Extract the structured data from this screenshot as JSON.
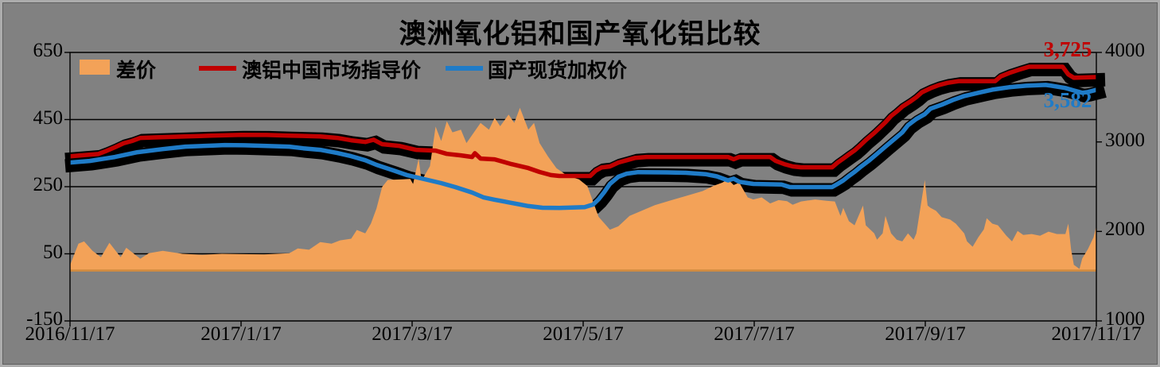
{
  "title": "澳洲氧化铝和国产氧化铝比较",
  "legend": [
    {
      "label": "差价",
      "type": "area",
      "color": "#F3A258"
    },
    {
      "label": "澳铝中国市场指导价",
      "type": "line",
      "color": "#C00000"
    },
    {
      "label": "国产现货加权价",
      "type": "line",
      "color": "#1F7BC7"
    }
  ],
  "colors": {
    "background": "#818181",
    "grid": "#000000",
    "shadow": "#000000",
    "area": "#F3A258",
    "area_baseline": "#D28B3F",
    "red_line": "#C00000",
    "blue_line": "#1F7BC7"
  },
  "chart_data": {
    "type": "combo",
    "x_axis": {
      "start": "2016/11/17",
      "end": "2017/11/17",
      "tick_labels": [
        "2016/11/17",
        "2017/1/17",
        "2017/3/17",
        "2017/5/17",
        "2017/7/17",
        "2017/9/17",
        "2017/11/17"
      ],
      "span_days": 365
    },
    "y_left": {
      "min": -150,
      "max": 650,
      "ticks": [
        650,
        450,
        250,
        50,
        -150
      ]
    },
    "y_right": {
      "min": 1000,
      "max": 4000,
      "ticks": [
        4000,
        3000,
        2000,
        1000
      ]
    },
    "grid": "horizontal-left-ticks",
    "legend_position": "top-left-inside",
    "end_labels": [
      {
        "text": "3,725",
        "value": 3725,
        "color": "#C00000"
      },
      {
        "text": "3,582",
        "value": 3582,
        "color": "#1F7BC7"
      }
    ],
    "series": [
      {
        "name": "差价",
        "type": "area",
        "axis": "left",
        "color": "#F3A258",
        "baseline": 0,
        "points": [
          [
            0,
            16
          ],
          [
            3,
            80
          ],
          [
            5,
            87
          ],
          [
            8,
            59
          ],
          [
            11,
            40
          ],
          [
            14,
            83
          ],
          [
            18,
            40
          ],
          [
            20,
            68
          ],
          [
            25,
            35
          ],
          [
            28,
            52
          ],
          [
            33,
            59
          ],
          [
            40,
            50
          ],
          [
            47,
            47
          ],
          [
            54,
            50
          ],
          [
            61,
            49
          ],
          [
            69,
            48
          ],
          [
            78,
            52
          ],
          [
            81,
            66
          ],
          [
            85,
            62
          ],
          [
            89,
            85
          ],
          [
            93,
            80
          ],
          [
            96,
            90
          ],
          [
            100,
            95
          ],
          [
            102,
            121
          ],
          [
            105,
            111
          ],
          [
            107,
            140
          ],
          [
            109,
            185
          ],
          [
            111,
            249
          ],
          [
            113,
            270
          ],
          [
            121,
            273
          ],
          [
            122,
            258
          ],
          [
            124,
            334
          ],
          [
            125,
            268
          ],
          [
            128,
            311
          ],
          [
            130,
            429
          ],
          [
            132,
            386
          ],
          [
            134,
            445
          ],
          [
            136,
            412
          ],
          [
            139,
            420
          ],
          [
            141,
            380
          ],
          [
            146,
            440
          ],
          [
            149,
            420
          ],
          [
            151,
            455
          ],
          [
            153,
            430
          ],
          [
            156,
            465
          ],
          [
            158,
            440
          ],
          [
            160,
            485
          ],
          [
            163,
            420
          ],
          [
            165,
            440
          ],
          [
            167,
            380
          ],
          [
            170,
            340
          ],
          [
            173,
            305
          ],
          [
            177,
            282
          ],
          [
            181,
            272
          ],
          [
            184,
            252
          ],
          [
            188,
            160
          ],
          [
            192,
            122
          ],
          [
            195,
            132
          ],
          [
            199,
            163
          ],
          [
            208,
            195
          ],
          [
            214,
            210
          ],
          [
            219,
            222
          ],
          [
            225,
            237
          ],
          [
            229,
            253
          ],
          [
            232,
            262
          ],
          [
            234,
            272
          ],
          [
            236,
            255
          ],
          [
            238,
            262
          ],
          [
            241,
            218
          ],
          [
            243,
            212
          ],
          [
            246,
            218
          ],
          [
            249,
            200
          ],
          [
            252,
            210
          ],
          [
            255,
            207
          ],
          [
            257,
            196
          ],
          [
            260,
            206
          ],
          [
            265,
            212
          ],
          [
            269,
            208
          ],
          [
            272,
            206
          ],
          [
            274,
            163
          ],
          [
            275,
            187
          ],
          [
            277,
            147
          ],
          [
            279,
            135
          ],
          [
            282,
            194
          ],
          [
            283,
            135
          ],
          [
            286,
            111
          ],
          [
            287,
            92
          ],
          [
            289,
            111
          ],
          [
            290,
            163
          ],
          [
            292,
            111
          ],
          [
            294,
            92
          ],
          [
            296,
            87
          ],
          [
            298,
            111
          ],
          [
            300,
            92
          ],
          [
            301,
            111
          ],
          [
            303,
            218
          ],
          [
            304,
            270
          ],
          [
            305,
            194
          ],
          [
            306,
            187
          ],
          [
            308,
            178
          ],
          [
            310,
            159
          ],
          [
            313,
            152
          ],
          [
            315,
            140
          ],
          [
            318,
            111
          ],
          [
            319,
            87
          ],
          [
            321,
            71
          ],
          [
            323,
            99
          ],
          [
            325,
            123
          ],
          [
            326,
            156
          ],
          [
            328,
            140
          ],
          [
            330,
            135
          ],
          [
            333,
            104
          ],
          [
            335,
            87
          ],
          [
            337,
            118
          ],
          [
            339,
            106
          ],
          [
            342,
            109
          ],
          [
            345,
            104
          ],
          [
            348,
            116
          ],
          [
            351,
            109
          ],
          [
            354,
            109
          ],
          [
            355,
            140
          ],
          [
            356,
            64
          ],
          [
            357,
            17
          ],
          [
            359,
            5
          ],
          [
            360,
            36
          ],
          [
            362,
            64
          ],
          [
            364,
            99
          ],
          [
            365,
            133
          ]
        ]
      },
      {
        "name": "澳铝中国市场指导价",
        "type": "line",
        "axis": "right",
        "color": "#C00000",
        "shadow": true,
        "points": [
          [
            0,
            2840
          ],
          [
            6,
            2855
          ],
          [
            10,
            2865
          ],
          [
            13,
            2900
          ],
          [
            16,
            2940
          ],
          [
            19,
            2985
          ],
          [
            22,
            3010
          ],
          [
            25,
            3045
          ],
          [
            30,
            3050
          ],
          [
            41,
            3062
          ],
          [
            50,
            3070
          ],
          [
            61,
            3080
          ],
          [
            70,
            3078
          ],
          [
            78,
            3071
          ],
          [
            89,
            3062
          ],
          [
            95,
            3045
          ],
          [
            100,
            3018
          ],
          [
            105,
            3000
          ],
          [
            108,
            3025
          ],
          [
            111,
            2975
          ],
          [
            117,
            2956
          ],
          [
            123,
            2912
          ],
          [
            130,
            2903
          ],
          [
            134,
            2867
          ],
          [
            139,
            2850
          ],
          [
            143,
            2832
          ],
          [
            144,
            2874
          ],
          [
            146,
            2814
          ],
          [
            151,
            2805
          ],
          [
            157,
            2752
          ],
          [
            163,
            2708
          ],
          [
            167,
            2664
          ],
          [
            171,
            2630
          ],
          [
            174,
            2620
          ],
          [
            185,
            2620
          ],
          [
            187,
            2680
          ],
          [
            189,
            2715
          ],
          [
            192,
            2726
          ],
          [
            195,
            2770
          ],
          [
            198,
            2796
          ],
          [
            201,
            2822
          ],
          [
            205,
            2832
          ],
          [
            234,
            2832
          ],
          [
            236,
            2806
          ],
          [
            238,
            2832
          ],
          [
            249,
            2832
          ],
          [
            251,
            2788
          ],
          [
            254,
            2752
          ],
          [
            257,
            2726
          ],
          [
            260,
            2717
          ],
          [
            271,
            2717
          ],
          [
            273,
            2770
          ],
          [
            275,
            2814
          ],
          [
            277,
            2860
          ],
          [
            279,
            2905
          ],
          [
            281,
            2960
          ],
          [
            283,
            3020
          ],
          [
            286,
            3100
          ],
          [
            288,
            3160
          ],
          [
            290,
            3220
          ],
          [
            292,
            3290
          ],
          [
            294,
            3340
          ],
          [
            296,
            3395
          ],
          [
            299,
            3455
          ],
          [
            301,
            3500
          ],
          [
            303,
            3555
          ],
          [
            306,
            3600
          ],
          [
            309,
            3635
          ],
          [
            312,
            3660
          ],
          [
            316,
            3680
          ],
          [
            329,
            3680
          ],
          [
            331,
            3732
          ],
          [
            334,
            3770
          ],
          [
            338,
            3812
          ],
          [
            341,
            3840
          ],
          [
            353,
            3840
          ],
          [
            355,
            3755
          ],
          [
            357,
            3717
          ],
          [
            365,
            3725
          ]
        ]
      },
      {
        "name": "国产现货加权价",
        "type": "line",
        "axis": "right",
        "color": "#1F7BC7",
        "shadow": true,
        "points": [
          [
            0,
            2770
          ],
          [
            7,
            2788
          ],
          [
            16,
            2832
          ],
          [
            24,
            2885
          ],
          [
            33,
            2920
          ],
          [
            41,
            2947
          ],
          [
            50,
            2958
          ],
          [
            55,
            2965
          ],
          [
            62,
            2962
          ],
          [
            69,
            2956
          ],
          [
            78,
            2947
          ],
          [
            83,
            2929
          ],
          [
            89,
            2912
          ],
          [
            95,
            2876
          ],
          [
            100,
            2841
          ],
          [
            105,
            2796
          ],
          [
            109,
            2744
          ],
          [
            115,
            2682
          ],
          [
            120,
            2628
          ],
          [
            126,
            2584
          ],
          [
            132,
            2540
          ],
          [
            137,
            2496
          ],
          [
            143,
            2434
          ],
          [
            147,
            2381
          ],
          [
            151,
            2354
          ],
          [
            157,
            2319
          ],
          [
            163,
            2283
          ],
          [
            168,
            2265
          ],
          [
            174,
            2263
          ],
          [
            183,
            2272
          ],
          [
            186,
            2300
          ],
          [
            188,
            2360
          ],
          [
            190,
            2440
          ],
          [
            192,
            2531
          ],
          [
            195,
            2611
          ],
          [
            198,
            2646
          ],
          [
            202,
            2662
          ],
          [
            212,
            2660
          ],
          [
            219,
            2655
          ],
          [
            226,
            2640
          ],
          [
            230,
            2615
          ],
          [
            232,
            2593
          ],
          [
            234,
            2570
          ],
          [
            236,
            2590
          ],
          [
            238,
            2555
          ],
          [
            241,
            2540
          ],
          [
            243,
            2531
          ],
          [
            253,
            2524
          ],
          [
            256,
            2496
          ],
          [
            271,
            2496
          ],
          [
            273,
            2531
          ],
          [
            275,
            2570
          ],
          [
            277,
            2620
          ],
          [
            279,
            2665
          ],
          [
            281,
            2717
          ],
          [
            284,
            2788
          ],
          [
            287,
            2867
          ],
          [
            290,
            2947
          ],
          [
            293,
            3027
          ],
          [
            296,
            3106
          ],
          [
            298,
            3186
          ],
          [
            301,
            3257
          ],
          [
            304,
            3310
          ],
          [
            306,
            3372
          ],
          [
            310,
            3416
          ],
          [
            314,
            3469
          ],
          [
            318,
            3513
          ],
          [
            323,
            3549
          ],
          [
            328,
            3584
          ],
          [
            334,
            3611
          ],
          [
            340,
            3628
          ],
          [
            347,
            3637
          ],
          [
            349,
            3628
          ],
          [
            354,
            3602
          ],
          [
            357,
            3575
          ],
          [
            360,
            3549
          ],
          [
            362,
            3558
          ],
          [
            365,
            3582
          ]
        ]
      }
    ]
  }
}
